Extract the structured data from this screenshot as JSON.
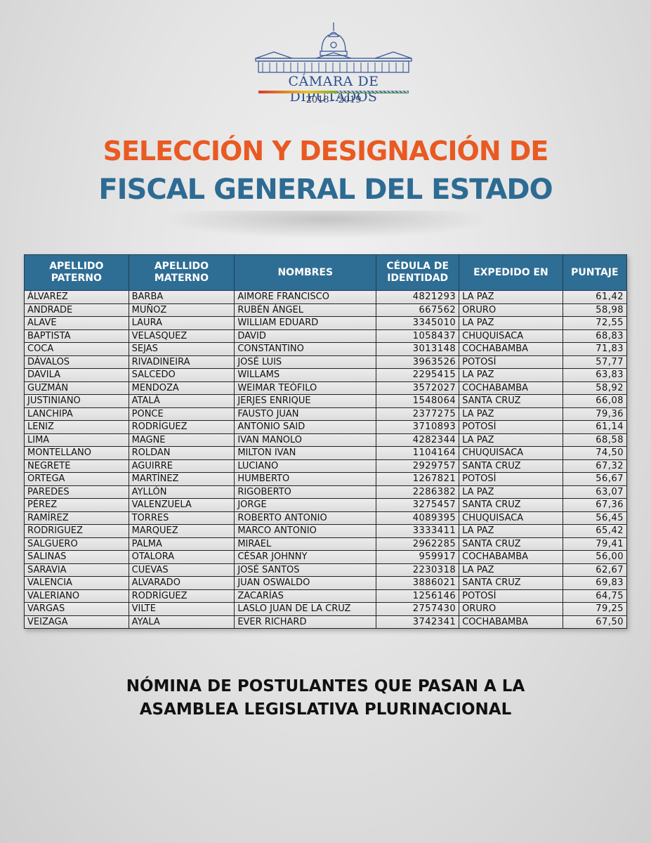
{
  "header": {
    "logo_name": "CÁMARA DE DIPUTADOS",
    "logo_years": "2018 - 2019",
    "title_line1": "SELECCIÓN Y DESIGNACIÓN DE",
    "title_line2": "FISCAL GENERAL DEL ESTADO",
    "colors": {
      "title1": "#e95a22",
      "title2": "#2d6b93",
      "table_header": "#2e6d94"
    }
  },
  "table": {
    "columns": [
      "APELLIDO PATERNO",
      "APELLIDO MATERNO",
      "NOMBRES",
      "CÉDULA DE IDENTIDAD",
      "EXPEDIDO EN",
      "PUNTAJE"
    ],
    "column_lines": [
      [
        "APELLIDO",
        "PATERNO"
      ],
      [
        "APELLIDO",
        "MATERNO"
      ],
      [
        "NOMBRES"
      ],
      [
        "CÉDULA DE",
        "IDENTIDAD"
      ],
      [
        "EXPEDIDO EN"
      ],
      [
        "PUNTAJE"
      ]
    ],
    "rows": [
      [
        "ÁLVAREZ",
        "BARBA",
        "AIMORE FRANCISCO",
        "4821293",
        "LA PAZ",
        "61,42"
      ],
      [
        "ANDRADE",
        "MUÑOZ",
        "RUBÉN ÁNGEL",
        "667562",
        "ORURO",
        "58,98"
      ],
      [
        "ALAVE",
        "LAURA",
        "WILLIAM EDUARD",
        "3345010",
        "LA PAZ",
        "72,55"
      ],
      [
        "BAPTISTA",
        "VELASQUEZ",
        "DAVID",
        "1058437",
        "CHUQUISACA",
        "68,83"
      ],
      [
        "COCA",
        "SEJAS",
        "CONSTANTINO",
        "3013148",
        "COCHABAMBA",
        "71,83"
      ],
      [
        "DÁVALOS",
        "RIVADINEIRA",
        "JOSÉ LUIS",
        "3963526",
        "POTOSÍ",
        "57,77"
      ],
      [
        "DAVILA",
        "SALCEDO",
        "WILLAMS",
        "2295415",
        "LA PAZ",
        "63,83"
      ],
      [
        "GUZMÁN",
        "MENDOZA",
        "WEIMAR TEÓFILO",
        "3572027",
        "COCHABAMBA",
        "58,92"
      ],
      [
        "JUSTINIANO",
        "ATALÁ",
        "JERJES ENRIQUE",
        "1548064",
        "SANTA CRUZ",
        "66,08"
      ],
      [
        "LANCHIPA",
        "PONCE",
        "FAUSTO JUAN",
        "2377275",
        "LA PAZ",
        "79,36"
      ],
      [
        "LENIZ",
        "RODRÍGUEZ",
        "ANTONIO SAID",
        "3710893",
        "POTOSÍ",
        "61,14"
      ],
      [
        "LIMA",
        "MAGNE",
        "IVAN MANOLO",
        "4282344",
        "LA PAZ",
        "68,58"
      ],
      [
        "MONTELLANO",
        "ROLDAN",
        "MILTON IVAN",
        "1104164",
        "CHUQUISACA",
        "74,50"
      ],
      [
        "NEGRETE",
        "AGUIRRE",
        "LUCIANO",
        "2929757",
        "SANTA CRUZ",
        "67,32"
      ],
      [
        "ORTEGA",
        "MARTÍNEZ",
        "HUMBERTO",
        "1267821",
        "POTOSÍ",
        "56,67"
      ],
      [
        "PAREDES",
        "AYLLÓN",
        "RIGOBERTO",
        "2286382",
        "LA PAZ",
        "63,07"
      ],
      [
        "PÉREZ",
        "VALENZUELA",
        "JORGE",
        "3275457",
        "SANTA CRUZ",
        "67,36"
      ],
      [
        "RAMÍREZ",
        "TORRES",
        "ROBERTO ANTONIO",
        "4089395",
        "CHUQUISACA",
        "56,45"
      ],
      [
        "RODRIGUEZ",
        "MARQUEZ",
        "MARCO ANTONIO",
        "3333411",
        "LA PAZ",
        "65,42"
      ],
      [
        "SALGUERO",
        "PALMA",
        "MIRAEL",
        "2962285",
        "SANTA CRUZ",
        "79,41"
      ],
      [
        "SALINAS",
        "OTALORA",
        "CÉSAR JOHNNY",
        "959917",
        "COCHABAMBA",
        "56,00"
      ],
      [
        "SARAVIA",
        "CUEVAS",
        "JOSÉ SANTOS",
        "2230318",
        "LA PAZ",
        "62,67"
      ],
      [
        "VALENCIA",
        "ALVARADO",
        "JUAN OSWALDO",
        "3886021",
        "SANTA CRUZ",
        "69,83"
      ],
      [
        "VALERIANO",
        "RODRÍGUEZ",
        "ZACARÍAS",
        "1256146",
        "POTOSÍ",
        "64,75"
      ],
      [
        "VARGAS",
        "VILTE",
        "LASLO  JUAN DE LA CRUZ",
        "2757430",
        "ORURO",
        "79,25"
      ],
      [
        "VEIZAGA",
        "AYALA",
        "EVER RICHARD",
        "3742341",
        "COCHABAMBA",
        "67,50"
      ]
    ]
  },
  "footer": {
    "line1": "NÓMINA DE POSTULANTES QUE PASAN A LA",
    "line2": "ASAMBLEA LEGISLATIVA PLURINACIONAL"
  }
}
